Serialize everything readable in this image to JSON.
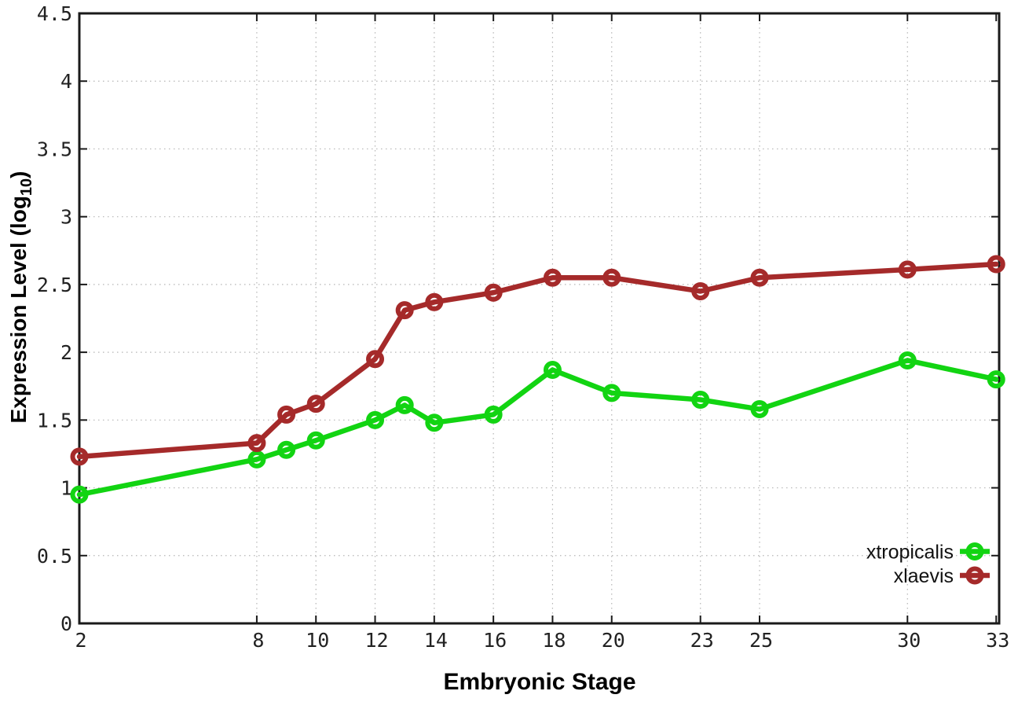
{
  "chart_data": {
    "type": "line",
    "title": "",
    "xlabel": "Embryonic Stage",
    "ylabel": "Expression Level (log10)",
    "ylabel_parts": {
      "main": "Expression Level (log",
      "sub": "10",
      "close": ")"
    },
    "x": [
      2,
      8,
      9,
      10,
      12,
      13,
      14,
      16,
      18,
      20,
      23,
      25,
      30,
      33
    ],
    "series": [
      {
        "name": "xtropicalis",
        "color": "#12d412",
        "values": [
          0.95,
          1.21,
          1.28,
          1.35,
          1.5,
          1.61,
          1.48,
          1.54,
          1.87,
          1.7,
          1.65,
          1.58,
          1.94,
          1.8
        ]
      },
      {
        "name": "xlaevis",
        "color": "#a52a2a",
        "values": [
          1.23,
          1.33,
          1.54,
          1.62,
          1.95,
          2.31,
          2.37,
          2.44,
          2.55,
          2.55,
          2.45,
          2.55,
          2.61,
          2.65
        ]
      }
    ],
    "xticks": [
      2,
      8,
      10,
      12,
      14,
      16,
      18,
      20,
      23,
      25,
      30,
      33
    ],
    "yticks": [
      0,
      0.5,
      1,
      1.5,
      2,
      2.5,
      3,
      3.5,
      4,
      4.5
    ],
    "xlim": [
      2,
      33.1
    ],
    "ylim": [
      0,
      4.5
    ],
    "grid": true,
    "legend_position": "bottom-right",
    "marker": "open-circle"
  },
  "colors": {
    "background": "#ffffff",
    "border": "#1a1a1a",
    "grid": "#b5b5b5",
    "tick_text": "#222222",
    "title_text": "#000000"
  }
}
